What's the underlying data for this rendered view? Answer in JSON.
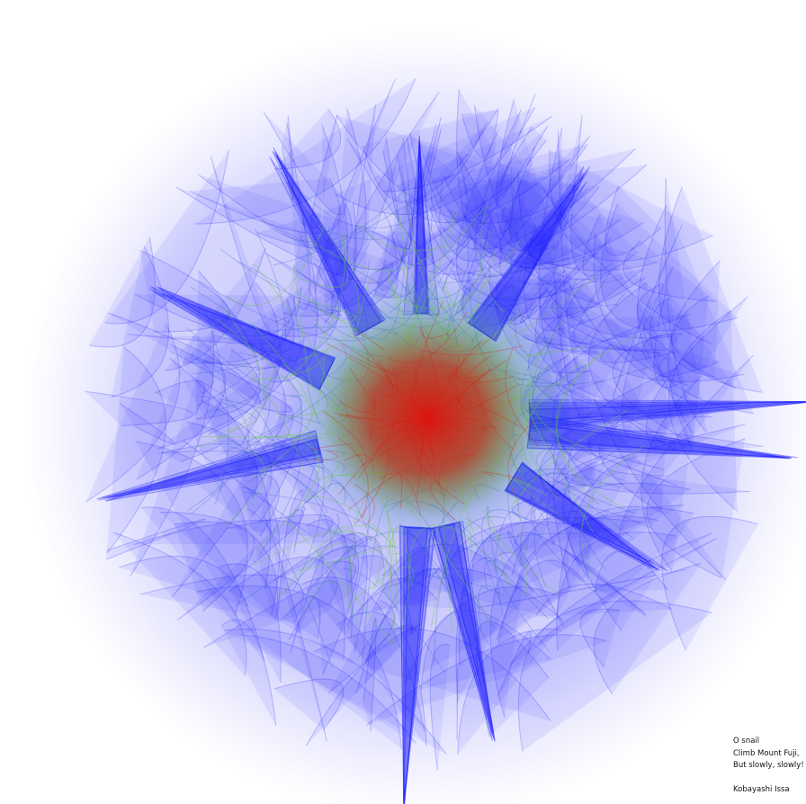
{
  "artwork": {
    "palette": {
      "background": "#ffffff",
      "outer": "#1a1aff",
      "middle": "#6ccf3a",
      "core": "#d8170d"
    }
  },
  "poem": {
    "lines": [
      "O snail",
      "Climb Mount Fuji,",
      "But slowly, slowly!"
    ],
    "author": "Kobayashi Issa"
  }
}
